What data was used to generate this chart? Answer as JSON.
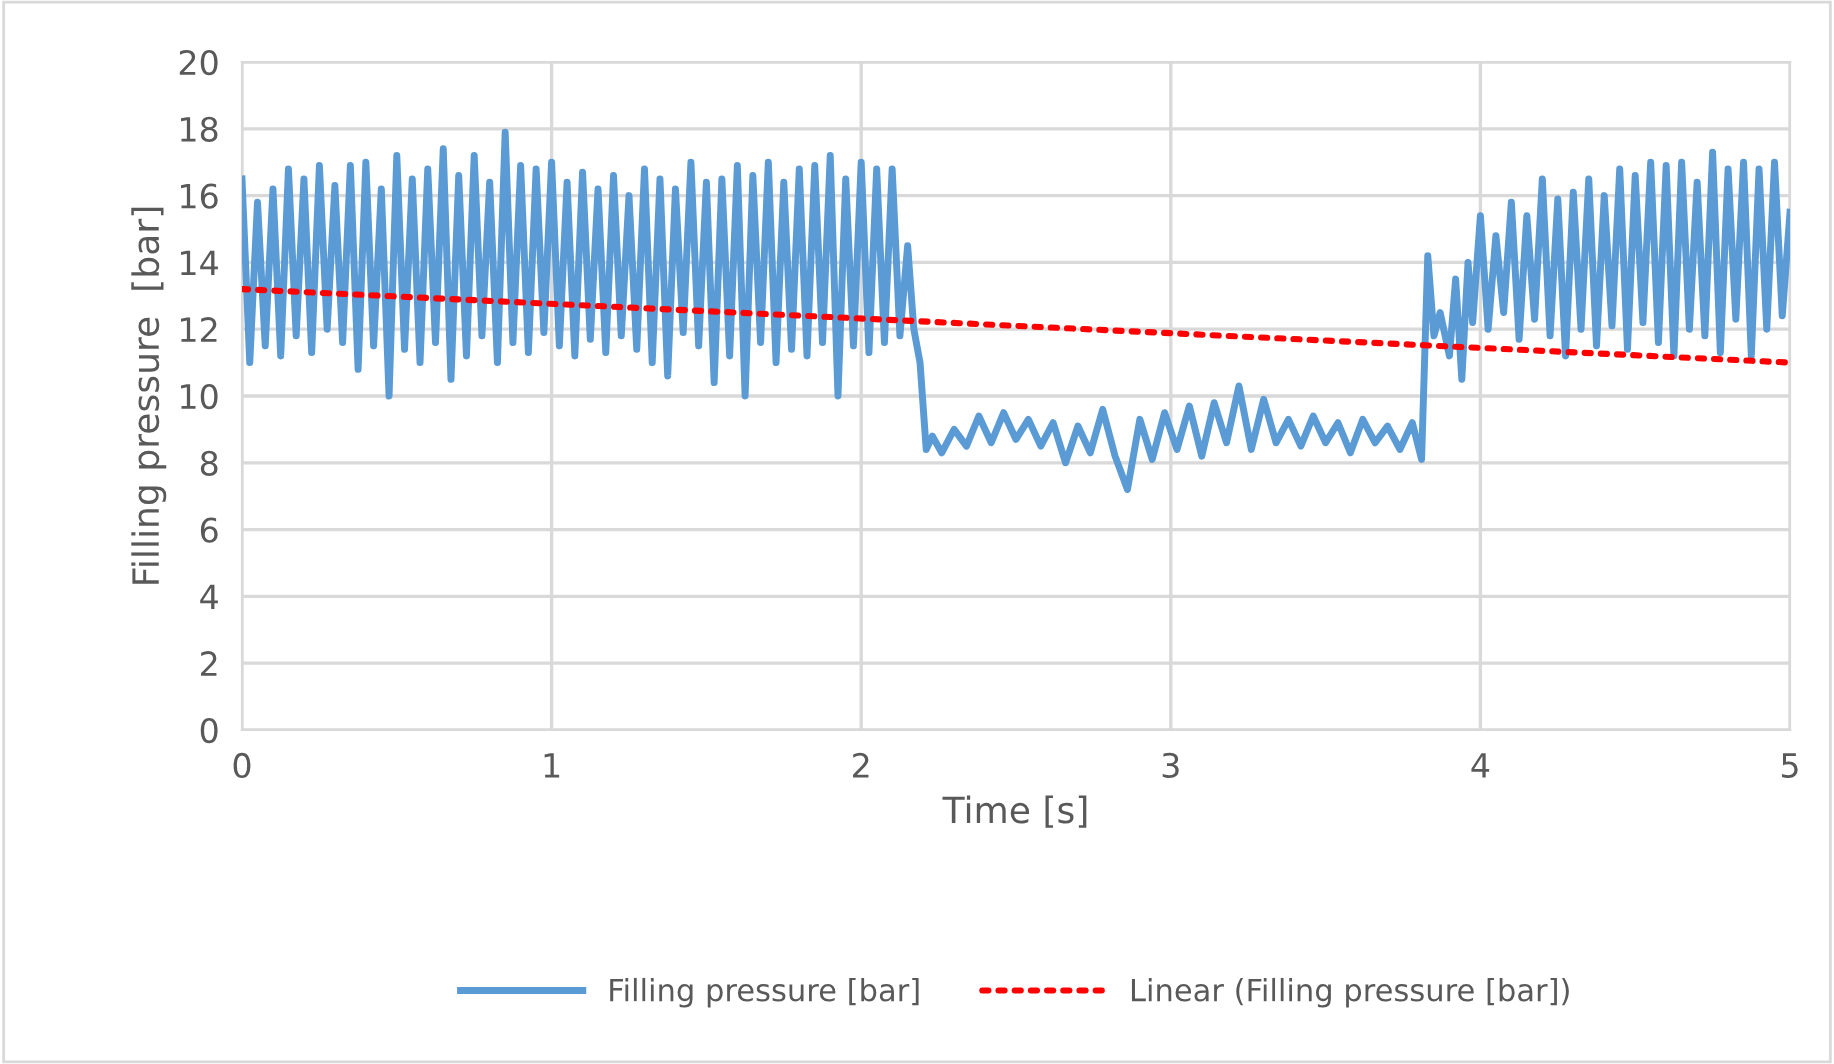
{
  "chart_data": {
    "type": "line",
    "xlabel": "Time [s]",
    "ylabel": "Filling pressure  [bar]",
    "xlim": [
      0,
      5
    ],
    "xticks": [
      0,
      1,
      2,
      3,
      4,
      5
    ],
    "ylim": [
      0,
      20
    ],
    "yticks": [
      0,
      2,
      4,
      6,
      8,
      10,
      12,
      14,
      16,
      18,
      20
    ],
    "grid": true,
    "legend": "bottom",
    "marker": "none",
    "series": [
      {
        "name": "Filling pressure [bar]",
        "color": "#5b9bd5",
        "line_style": "solid",
        "x": [
          0,
          0.025,
          0.05,
          0.075,
          0.1,
          0.125,
          0.15,
          0.175,
          0.2,
          0.225,
          0.25,
          0.275,
          0.3,
          0.325,
          0.35,
          0.375,
          0.4,
          0.425,
          0.45,
          0.475,
          0.5,
          0.525,
          0.55,
          0.575,
          0.6,
          0.625,
          0.65,
          0.675,
          0.7,
          0.725,
          0.75,
          0.775,
          0.8,
          0.825,
          0.85,
          0.875,
          0.9,
          0.925,
          0.95,
          0.975,
          1.0,
          1.025,
          1.05,
          1.075,
          1.1,
          1.125,
          1.15,
          1.175,
          1.2,
          1.225,
          1.25,
          1.275,
          1.3,
          1.325,
          1.35,
          1.375,
          1.4,
          1.425,
          1.45,
          1.475,
          1.5,
          1.525,
          1.55,
          1.575,
          1.6,
          1.625,
          1.65,
          1.675,
          1.7,
          1.725,
          1.75,
          1.775,
          1.8,
          1.825,
          1.85,
          1.875,
          1.9,
          1.925,
          1.95,
          1.975,
          2.0,
          2.025,
          2.05,
          2.075,
          2.1,
          2.125,
          2.15,
          2.17,
          2.19,
          2.21,
          2.23,
          2.26,
          2.3,
          2.34,
          2.38,
          2.42,
          2.46,
          2.5,
          2.54,
          2.58,
          2.62,
          2.66,
          2.7,
          2.74,
          2.78,
          2.82,
          2.86,
          2.9,
          2.94,
          2.98,
          3.02,
          3.06,
          3.1,
          3.14,
          3.18,
          3.22,
          3.26,
          3.3,
          3.34,
          3.38,
          3.42,
          3.46,
          3.5,
          3.54,
          3.58,
          3.62,
          3.66,
          3.7,
          3.74,
          3.78,
          3.81,
          3.83,
          3.85,
          3.87,
          3.9,
          3.92,
          3.94,
          3.96,
          3.975,
          4.0,
          4.025,
          4.05,
          4.075,
          4.1,
          4.125,
          4.15,
          4.175,
          4.2,
          4.225,
          4.25,
          4.275,
          4.3,
          4.325,
          4.35,
          4.375,
          4.4,
          4.425,
          4.45,
          4.475,
          4.5,
          4.525,
          4.55,
          4.575,
          4.6,
          4.625,
          4.65,
          4.675,
          4.7,
          4.725,
          4.75,
          4.775,
          4.8,
          4.825,
          4.85,
          4.875,
          4.9,
          4.925,
          4.95,
          4.975,
          5.0
        ],
        "values": [
          16.5,
          11.0,
          15.8,
          11.5,
          16.2,
          11.2,
          16.8,
          11.8,
          16.5,
          11.3,
          16.9,
          12.0,
          16.3,
          11.6,
          16.9,
          10.8,
          17.0,
          11.5,
          16.2,
          10.0,
          17.2,
          11.4,
          16.5,
          11.0,
          16.8,
          11.6,
          17.4,
          10.5,
          16.6,
          11.2,
          17.2,
          11.8,
          16.4,
          11.0,
          17.9,
          11.6,
          16.9,
          11.3,
          16.8,
          11.9,
          17.0,
          11.5,
          16.4,
          11.2,
          16.7,
          11.7,
          16.2,
          11.3,
          16.6,
          11.8,
          16.0,
          11.4,
          16.8,
          11.0,
          16.5,
          10.6,
          16.2,
          11.9,
          17.0,
          11.5,
          16.4,
          10.4,
          16.5,
          11.2,
          16.9,
          10.0,
          16.6,
          11.6,
          17.0,
          11.0,
          16.4,
          11.4,
          16.8,
          11.2,
          16.9,
          11.6,
          17.2,
          10.0,
          16.5,
          11.5,
          17.0,
          11.3,
          16.8,
          11.6,
          16.8,
          11.8,
          14.5,
          12.0,
          11.0,
          8.4,
          8.8,
          8.3,
          9.0,
          8.5,
          9.4,
          8.6,
          9.5,
          8.7,
          9.3,
          8.5,
          9.2,
          8.0,
          9.1,
          8.3,
          9.6,
          8.2,
          7.2,
          9.3,
          8.1,
          9.5,
          8.4,
          9.7,
          8.2,
          9.8,
          8.6,
          10.3,
          8.4,
          9.9,
          8.6,
          9.3,
          8.5,
          9.4,
          8.6,
          9.2,
          8.3,
          9.3,
          8.6,
          9.1,
          8.4,
          9.2,
          8.1,
          14.2,
          11.8,
          12.5,
          11.2,
          13.5,
          10.5,
          14.0,
          12.2,
          15.4,
          12.0,
          14.8,
          12.5,
          15.8,
          11.7,
          15.4,
          12.3,
          16.5,
          11.8,
          15.9,
          11.2,
          16.1,
          12.0,
          16.5,
          11.5,
          16.0,
          12.1,
          16.8,
          11.4,
          16.6,
          12.2,
          17.0,
          11.6,
          16.9,
          11.2,
          17.0,
          12.0,
          16.4,
          11.8,
          17.3,
          11.3,
          16.8,
          12.3,
          17.0,
          11.2,
          16.8,
          12.0,
          17.0,
          12.4,
          15.5
        ]
      },
      {
        "name": "Linear (Filling pressure [bar])",
        "color": "#ff0000",
        "line_style": "dotted",
        "x": [
          0,
          5
        ],
        "values": [
          13.2,
          11.0
        ]
      }
    ]
  }
}
